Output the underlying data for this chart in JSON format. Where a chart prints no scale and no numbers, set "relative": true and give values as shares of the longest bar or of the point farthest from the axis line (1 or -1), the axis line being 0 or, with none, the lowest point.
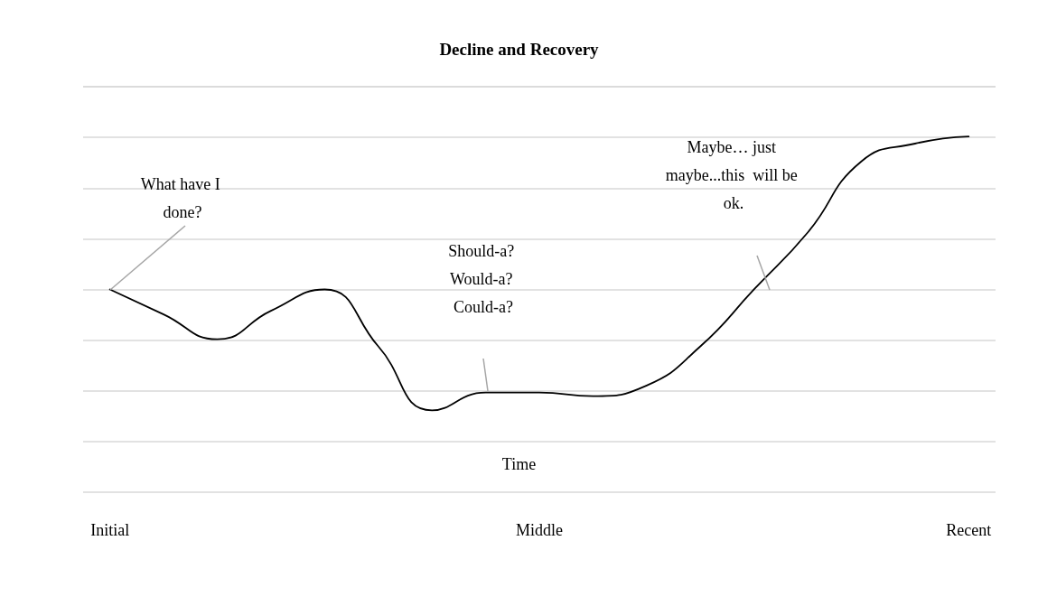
{
  "chart_data": {
    "type": "line",
    "title": "Decline and Recovery",
    "xlabel": "Time",
    "relative": true,
    "grid": "y",
    "marker": "none",
    "categories": [
      "Initial",
      null,
      null,
      null,
      null,
      null,
      null,
      null,
      "Middle",
      null,
      null,
      null,
      null,
      null,
      null,
      null,
      "Recent"
    ],
    "series": [
      {
        "color": "#000000",
        "values": [
          0.57,
          0.5,
          0.43,
          0.51,
          0.57,
          0.41,
          0.23,
          0.28,
          0.28,
          0.27,
          0.3,
          0.41,
          0.57,
          0.73,
          0.93,
          0.98,
          1
        ]
      }
    ],
    "annotations": [
      "What have I done?",
      "Should-a? Would-a? Could-a?",
      "Maybe… just maybe...this  will be ok."
    ]
  }
}
